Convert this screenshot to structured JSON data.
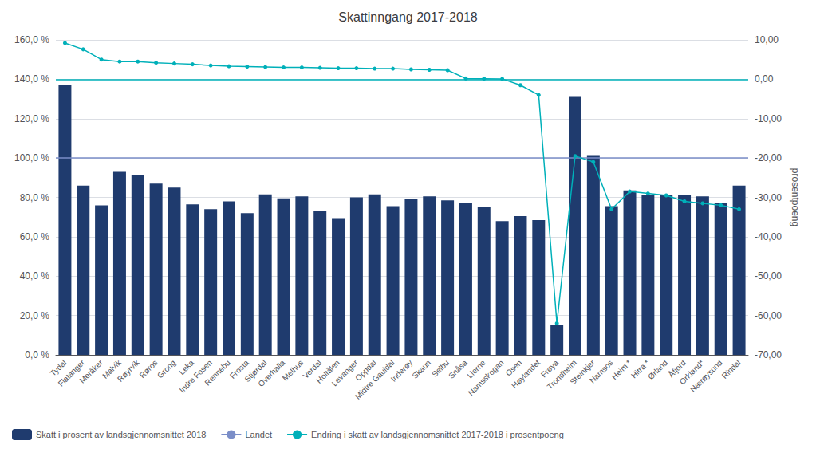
{
  "chart_data": {
    "type": "bar",
    "title": "Skattinngang 2017-2018",
    "categories": [
      "Tydal",
      "Flatanger",
      "Meråker",
      "Malvik",
      "Røyrvik",
      "Røros",
      "Grong",
      "Leka",
      "Indre Fosen",
      "Rennebu",
      "Frosta",
      "Stjørdal",
      "Overhalla",
      "Melhus",
      "Verdal",
      "Holtålen",
      "Levanger",
      "Oppdal",
      "Midtre Gauldal",
      "Inderøy",
      "Skaun",
      "Selbu",
      "Snåsa",
      "Lierne",
      "Namsskogan",
      "Osen",
      "Høylandet",
      "Frøya",
      "Trondheim",
      "Steinkjer",
      "Namsos",
      "Heim *",
      "Hitra *",
      "Ørland",
      "Åfjord",
      "Orkland*",
      "Nærøysund",
      "Rindal"
    ],
    "series": [
      {
        "name": "Skatt i prosent av landsgjennomsnittet 2018",
        "type": "bar",
        "color": "#1F3B6E",
        "values": [
          137.0,
          86.0,
          76.0,
          93.0,
          91.5,
          87.0,
          85.0,
          76.5,
          74.0,
          78.0,
          72.0,
          81.5,
          79.5,
          80.5,
          73.0,
          69.5,
          80.0,
          81.5,
          75.5,
          79.0,
          80.5,
          78.5,
          77.0,
          75.0,
          68.0,
          70.5,
          68.5,
          15.0,
          131.0,
          101.5,
          75.5,
          83.5,
          81.0,
          81.0,
          81.0,
          80.5,
          77.0,
          86.0
        ]
      },
      {
        "name": "Landet",
        "type": "hline",
        "color": "#7B8EC8",
        "value": 100.0
      },
      {
        "name": "Endring i skatt av landsgjennomsnittet 2017-2018 i prosentpoeng",
        "type": "line",
        "axis": "y2",
        "color": "#00B0B9",
        "marker": "circle",
        "reference_line": 0,
        "values": [
          9.2,
          7.6,
          5.0,
          4.5,
          4.5,
          4.2,
          4.0,
          3.8,
          3.5,
          3.3,
          3.2,
          3.1,
          3.0,
          3.0,
          2.9,
          2.8,
          2.8,
          2.7,
          2.7,
          2.5,
          2.4,
          2.3,
          0.2,
          0.15,
          0.1,
          -1.5,
          -4.0,
          -62.0,
          -19.5,
          -21.0,
          -33.0,
          -28.5,
          -29.0,
          -29.5,
          -31.0,
          -31.5,
          -32.0,
          -33.0
        ]
      }
    ],
    "ylim": [
      0.0,
      160.0
    ],
    "yticks": [
      {
        "value": 0,
        "label": "0,0 %"
      },
      {
        "value": 20,
        "label": "20,0 %"
      },
      {
        "value": 40,
        "label": "40,0 %"
      },
      {
        "value": 60,
        "label": "60,0 %"
      },
      {
        "value": 80,
        "label": "80,0 %"
      },
      {
        "value": 100,
        "label": "100,0 %"
      },
      {
        "value": 120,
        "label": "120,0 %"
      },
      {
        "value": 140,
        "label": "140,0 %"
      },
      {
        "value": 160,
        "label": "160,0 %"
      }
    ],
    "y2lim": [
      -70.0,
      10.0
    ],
    "y2ticks": [
      {
        "value": -70,
        "label": "-70,00"
      },
      {
        "value": -60,
        "label": "-60,00"
      },
      {
        "value": -50,
        "label": "-50,00"
      },
      {
        "value": -40,
        "label": "-40,00"
      },
      {
        "value": -30,
        "label": "-30,00"
      },
      {
        "value": -20,
        "label": "-20,00"
      },
      {
        "value": -10,
        "label": "-10,00"
      },
      {
        "value": 0,
        "label": "0,00"
      },
      {
        "value": 10,
        "label": "10,00"
      }
    ],
    "y2label": "prosentpoeng",
    "grid": true,
    "legend": "lower left"
  }
}
